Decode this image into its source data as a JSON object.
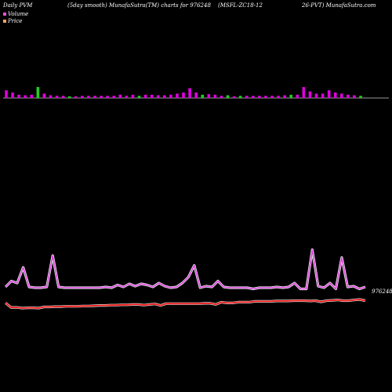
{
  "header": {
    "left": "Daily PVM",
    "mid1": "(5day smooth) MunafaSutra(TM) charts for 976248",
    "mid2": "(MSFL-ZC18-12",
    "right": "26-PVT) MunafaSutra.com"
  },
  "legend": {
    "volume_label": "Volume",
    "price_label": "Price",
    "volume_color": "#e84fe8",
    "price_color": "#f4a460"
  },
  "end_label": "976248.0",
  "colors": {
    "volume_up": "#e000e0",
    "volume_down": "#22cc22",
    "volume_line": "#dd44dd",
    "price_line": "#ee1111",
    "baseline": "#cccccc"
  },
  "chart_data": [
    {
      "type": "bar",
      "title": "Volume",
      "values": [
        0.7,
        0.5,
        0.3,
        0.25,
        0.3,
        1.0,
        0.4,
        0.25,
        0.2,
        0.2,
        0.15,
        0.15,
        0.2,
        0.2,
        0.2,
        0.2,
        0.2,
        0.2,
        0.3,
        0.2,
        0.3,
        0.2,
        0.3,
        0.3,
        0.25,
        0.25,
        0.3,
        0.4,
        0.5,
        0.9,
        0.5,
        0.3,
        0.35,
        0.3,
        0.2,
        0.25,
        0.15,
        0.2,
        0.2,
        0.2,
        0.2,
        0.2,
        0.2,
        0.2,
        0.25,
        0.3,
        0.3,
        1.0,
        0.6,
        0.4,
        0.4,
        0.7,
        0.5,
        0.4,
        0.3,
        0.25,
        0.2
      ],
      "direction": [
        "up",
        "up",
        "up",
        "up",
        "up",
        "down",
        "up",
        "up",
        "up",
        "up",
        "down",
        "up",
        "up",
        "up",
        "up",
        "up",
        "up",
        "up",
        "up",
        "up",
        "up",
        "down",
        "up",
        "up",
        "up",
        "up",
        "up",
        "up",
        "up",
        "up",
        "up",
        "down",
        "up",
        "up",
        "up",
        "down",
        "up",
        "down",
        "up",
        "up",
        "up",
        "up",
        "up",
        "up",
        "up",
        "down",
        "up",
        "up",
        "up",
        "up",
        "up",
        "up",
        "up",
        "up",
        "up",
        "up",
        "down"
      ]
    },
    {
      "type": "line",
      "title": "Volume (5day smooth)",
      "values": [
        0.2,
        0.35,
        0.3,
        0.7,
        0.2,
        0.18,
        0.18,
        0.2,
        1.0,
        0.2,
        0.18,
        0.18,
        0.18,
        0.18,
        0.18,
        0.18,
        0.18,
        0.2,
        0.18,
        0.25,
        0.2,
        0.28,
        0.22,
        0.28,
        0.25,
        0.2,
        0.3,
        0.22,
        0.18,
        0.2,
        0.3,
        0.45,
        0.75,
        0.18,
        0.22,
        0.2,
        0.35,
        0.2,
        0.18,
        0.18,
        0.18,
        0.18,
        0.15,
        0.18,
        0.18,
        0.18,
        0.2,
        0.18,
        0.2,
        0.3,
        0.15,
        0.15,
        1.15,
        0.22,
        0.18,
        0.3,
        0.15,
        0.95,
        0.2,
        0.22,
        0.15,
        0.2
      ]
    },
    {
      "type": "line",
      "title": "Price",
      "values": [
        0.35,
        0.05,
        0.05,
        0.0,
        0.02,
        0.02,
        0.0,
        0.08,
        0.08,
        0.1,
        0.1,
        0.12,
        0.12,
        0.12,
        0.14,
        0.14,
        0.16,
        0.18,
        0.18,
        0.2,
        0.2,
        0.22,
        0.22,
        0.24,
        0.24,
        0.2,
        0.24,
        0.28,
        0.18,
        0.3,
        0.3,
        0.3,
        0.3,
        0.3,
        0.3,
        0.3,
        0.32,
        0.32,
        0.25,
        0.4,
        0.35,
        0.35,
        0.4,
        0.4,
        0.4,
        0.45,
        0.45,
        0.45,
        0.45,
        0.48,
        0.48,
        0.48,
        0.5,
        0.5,
        0.5,
        0.48,
        0.5,
        0.42,
        0.5,
        0.52,
        0.55,
        0.5,
        0.5,
        0.55,
        0.58,
        0.5
      ]
    }
  ]
}
